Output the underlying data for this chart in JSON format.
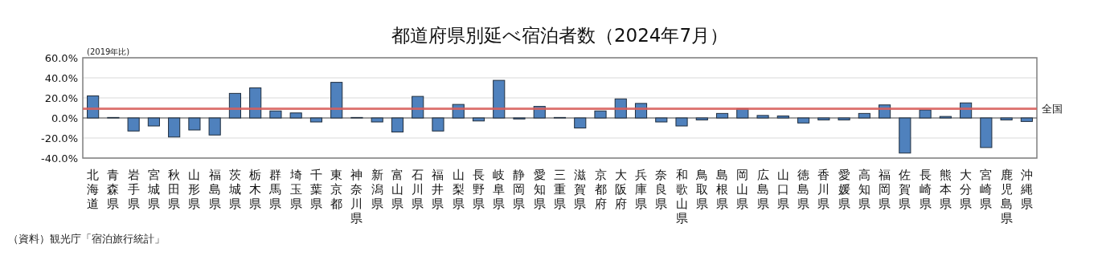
{
  "chart_data": {
    "type": "bar",
    "title": "都道府県別延べ宿泊者数（2024年7月）",
    "ylabel": "(2019年比)",
    "categories": [
      "北海道",
      "青森県",
      "岩手県",
      "宮城県",
      "秋田県",
      "山形県",
      "福島県",
      "茨城県",
      "栃木県",
      "群馬県",
      "埼玉県",
      "千葉県",
      "東京都",
      "神奈川県",
      "新潟県",
      "富山県",
      "石川県",
      "福井県",
      "山梨県",
      "長野県",
      "岐阜県",
      "静岡県",
      "愛知県",
      "三重県",
      "滋賀県",
      "京都府",
      "大阪府",
      "兵庫県",
      "奈良県",
      "和歌山県",
      "鳥取県",
      "島根県",
      "岡山県",
      "広島県",
      "山口県",
      "徳島県",
      "香川県",
      "愛媛県",
      "高知県",
      "福岡県",
      "佐賀県",
      "長崎県",
      "熊本県",
      "大分県",
      "宮崎県",
      "鹿児島県",
      "沖縄県"
    ],
    "values": [
      22,
      0.5,
      -13,
      -8,
      -19,
      -12,
      -17,
      24.5,
      30,
      7,
      5,
      -4,
      35.5,
      0.5,
      -4,
      -14,
      21.5,
      -13,
      13.5,
      -3,
      37.5,
      -1,
      11.5,
      0.5,
      -10,
      7,
      19,
      14.5,
      -4,
      -8,
      -2,
      4.5,
      9,
      2.5,
      2,
      -5,
      -2,
      -2,
      4.5,
      13,
      -35,
      8,
      1.5,
      15,
      -29.5,
      -2,
      -3.5
    ],
    "color": "#4f81bd",
    "ylim": [
      -40,
      60
    ],
    "yticks": [
      {
        "value": -40,
        "label": "-40.0%"
      },
      {
        "value": -20,
        "label": "-20.0%"
      },
      {
        "value": 0,
        "label": "0.0%"
      },
      {
        "value": 20,
        "label": "20.0%"
      },
      {
        "value": 40,
        "label": "40.0%"
      },
      {
        "value": 60,
        "label": "60.0%"
      }
    ],
    "grid": "y",
    "ref_lines": [
      {
        "axis": "y",
        "value": 9.3,
        "label": "全国",
        "color": "#d9605c"
      }
    ],
    "annotations": [
      "（資料）観光庁「宿泊旅行統計」"
    ]
  }
}
